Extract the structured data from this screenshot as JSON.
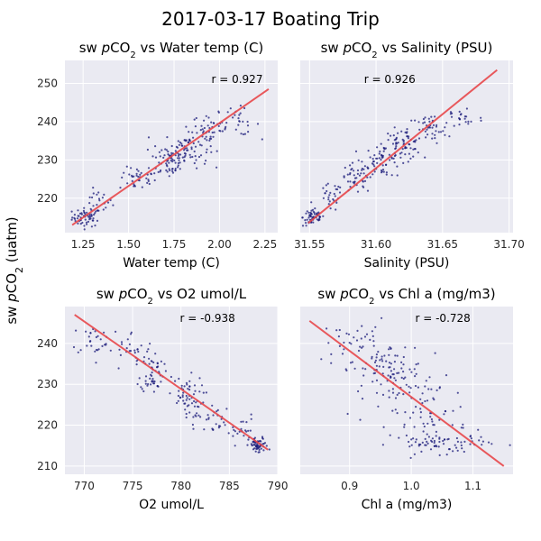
{
  "figure": {
    "title": "2017-03-17 Boating Trip",
    "shared_ylabel": "sw pCO2 (uatm)"
  },
  "colors": {
    "panel_bg": "#eaeaf2",
    "grid": "#ffffff",
    "points": "#1a1a7a",
    "fit_line": "#e8474a"
  },
  "chart_data": [
    {
      "type": "scatter",
      "title": "sw pCO2 vs Water temp (C)",
      "xlabel": "Water temp (C)",
      "annotation": "r = 0.927",
      "xlim": [
        1.15,
        2.32
      ],
      "ylim": [
        211,
        256
      ],
      "xticks": [
        1.25,
        1.5,
        1.75,
        2.0,
        2.25
      ],
      "xtick_labels": [
        "1.25",
        "1.50",
        "1.75",
        "2.00",
        "2.25"
      ],
      "yticks": [
        220,
        230,
        240,
        250
      ],
      "ytick_labels": [
        "220",
        "230",
        "240",
        "250"
      ],
      "fit_line": [
        [
          1.19,
          213
        ],
        [
          2.27,
          248.5
        ]
      ],
      "clusters": [
        {
          "x": 1.27,
          "y": 215,
          "sx": 0.04,
          "sy": 1.2,
          "n": 60
        },
        {
          "x": 1.33,
          "y": 219,
          "sx": 0.04,
          "sy": 1.5,
          "n": 20
        },
        {
          "x": 1.55,
          "y": 225,
          "sx": 0.05,
          "sy": 1.5,
          "n": 35
        },
        {
          "x": 1.72,
          "y": 230,
          "sx": 0.05,
          "sy": 2.5,
          "n": 60
        },
        {
          "x": 1.82,
          "y": 233,
          "sx": 0.06,
          "sy": 2.5,
          "n": 70
        },
        {
          "x": 1.95,
          "y": 238,
          "sx": 0.05,
          "sy": 2.0,
          "n": 45
        },
        {
          "x": 2.1,
          "y": 240,
          "sx": 0.06,
          "sy": 1.8,
          "n": 25
        }
      ]
    },
    {
      "type": "scatter",
      "title": "sw pCO2 vs Salinity (PSU)",
      "xlabel": "Salinity (PSU)",
      "annotation": "r = 0.926",
      "xlim": [
        31.543,
        31.703
      ],
      "ylim": [
        211,
        256
      ],
      "xticks": [
        31.55,
        31.6,
        31.65,
        31.7
      ],
      "xtick_labels": [
        "31.55",
        "31.60",
        "31.65",
        "31.70"
      ],
      "yticks": [
        220,
        230,
        240,
        250
      ],
      "ytick_labels": [
        "220",
        "230",
        "240",
        "250"
      ],
      "fit_line": [
        [
          31.549,
          213.5
        ],
        [
          31.691,
          253.5
        ]
      ],
      "clusters": [
        {
          "x": 31.553,
          "y": 215,
          "sx": 0.004,
          "sy": 1.2,
          "n": 60
        },
        {
          "x": 31.565,
          "y": 220,
          "sx": 0.005,
          "sy": 1.8,
          "n": 25
        },
        {
          "x": 31.585,
          "y": 225,
          "sx": 0.006,
          "sy": 2.0,
          "n": 45
        },
        {
          "x": 31.605,
          "y": 230,
          "sx": 0.007,
          "sy": 2.2,
          "n": 60
        },
        {
          "x": 31.62,
          "y": 234,
          "sx": 0.007,
          "sy": 2.0,
          "n": 60
        },
        {
          "x": 31.64,
          "y": 238,
          "sx": 0.008,
          "sy": 2.0,
          "n": 45
        },
        {
          "x": 31.665,
          "y": 241,
          "sx": 0.008,
          "sy": 1.8,
          "n": 20
        }
      ]
    },
    {
      "type": "scatter",
      "title": "sw pCO2 vs O2 umol/L",
      "xlabel": "O2 umol/L",
      "annotation": "r = -0.938",
      "xlim": [
        768,
        790
      ],
      "ylim": [
        208,
        249
      ],
      "xticks": [
        770,
        775,
        780,
        785,
        790
      ],
      "xtick_labels": [
        "770",
        "775",
        "780",
        "785",
        "790"
      ],
      "yticks": [
        210,
        220,
        230,
        240
      ],
      "ytick_labels": [
        "210",
        "220",
        "230",
        "240"
      ],
      "fit_line": [
        [
          769,
          247
        ],
        [
          789,
          214
        ]
      ],
      "clusters": [
        {
          "x": 771.5,
          "y": 241,
          "sx": 1.5,
          "sy": 2.0,
          "n": 30
        },
        {
          "x": 775.0,
          "y": 238,
          "sx": 1.2,
          "sy": 2.5,
          "n": 25
        },
        {
          "x": 777.0,
          "y": 233,
          "sx": 0.6,
          "sy": 2.5,
          "n": 55
        },
        {
          "x": 780.5,
          "y": 227,
          "sx": 0.9,
          "sy": 2.5,
          "n": 55
        },
        {
          "x": 782.5,
          "y": 222,
          "sx": 1.0,
          "sy": 2.0,
          "n": 30
        },
        {
          "x": 786.0,
          "y": 219,
          "sx": 0.9,
          "sy": 1.8,
          "n": 25
        },
        {
          "x": 788.0,
          "y": 215,
          "sx": 0.5,
          "sy": 1.0,
          "n": 60
        }
      ]
    },
    {
      "type": "scatter",
      "title": "sw pCO2 vs Chl a (mg/m3)",
      "xlabel": "Chl a (mg/m3)",
      "annotation": "r = -0.728",
      "xlim": [
        0.82,
        1.165
      ],
      "ylim": [
        208,
        249
      ],
      "xticks": [
        0.9,
        1.0,
        1.1
      ],
      "xtick_labels": [
        "0.9",
        "1.0",
        "1.1"
      ],
      "yticks": [
        210,
        220,
        230,
        240
      ],
      "ytick_labels": [
        "210",
        "220",
        "230",
        "240"
      ],
      "fit_line": [
        [
          0.835,
          245.5
        ],
        [
          1.15,
          210
        ]
      ],
      "clusters": [
        {
          "x": 0.91,
          "y": 240,
          "sx": 0.025,
          "sy": 3.0,
          "n": 40
        },
        {
          "x": 0.96,
          "y": 234,
          "sx": 0.03,
          "sy": 3.0,
          "n": 70
        },
        {
          "x": 1.01,
          "y": 228,
          "sx": 0.04,
          "sy": 3.0,
          "n": 50
        },
        {
          "x": 1.03,
          "y": 221,
          "sx": 0.03,
          "sy": 2.0,
          "n": 35
        },
        {
          "x": 1.05,
          "y": 215.5,
          "sx": 0.04,
          "sy": 1.2,
          "n": 70
        }
      ]
    }
  ]
}
